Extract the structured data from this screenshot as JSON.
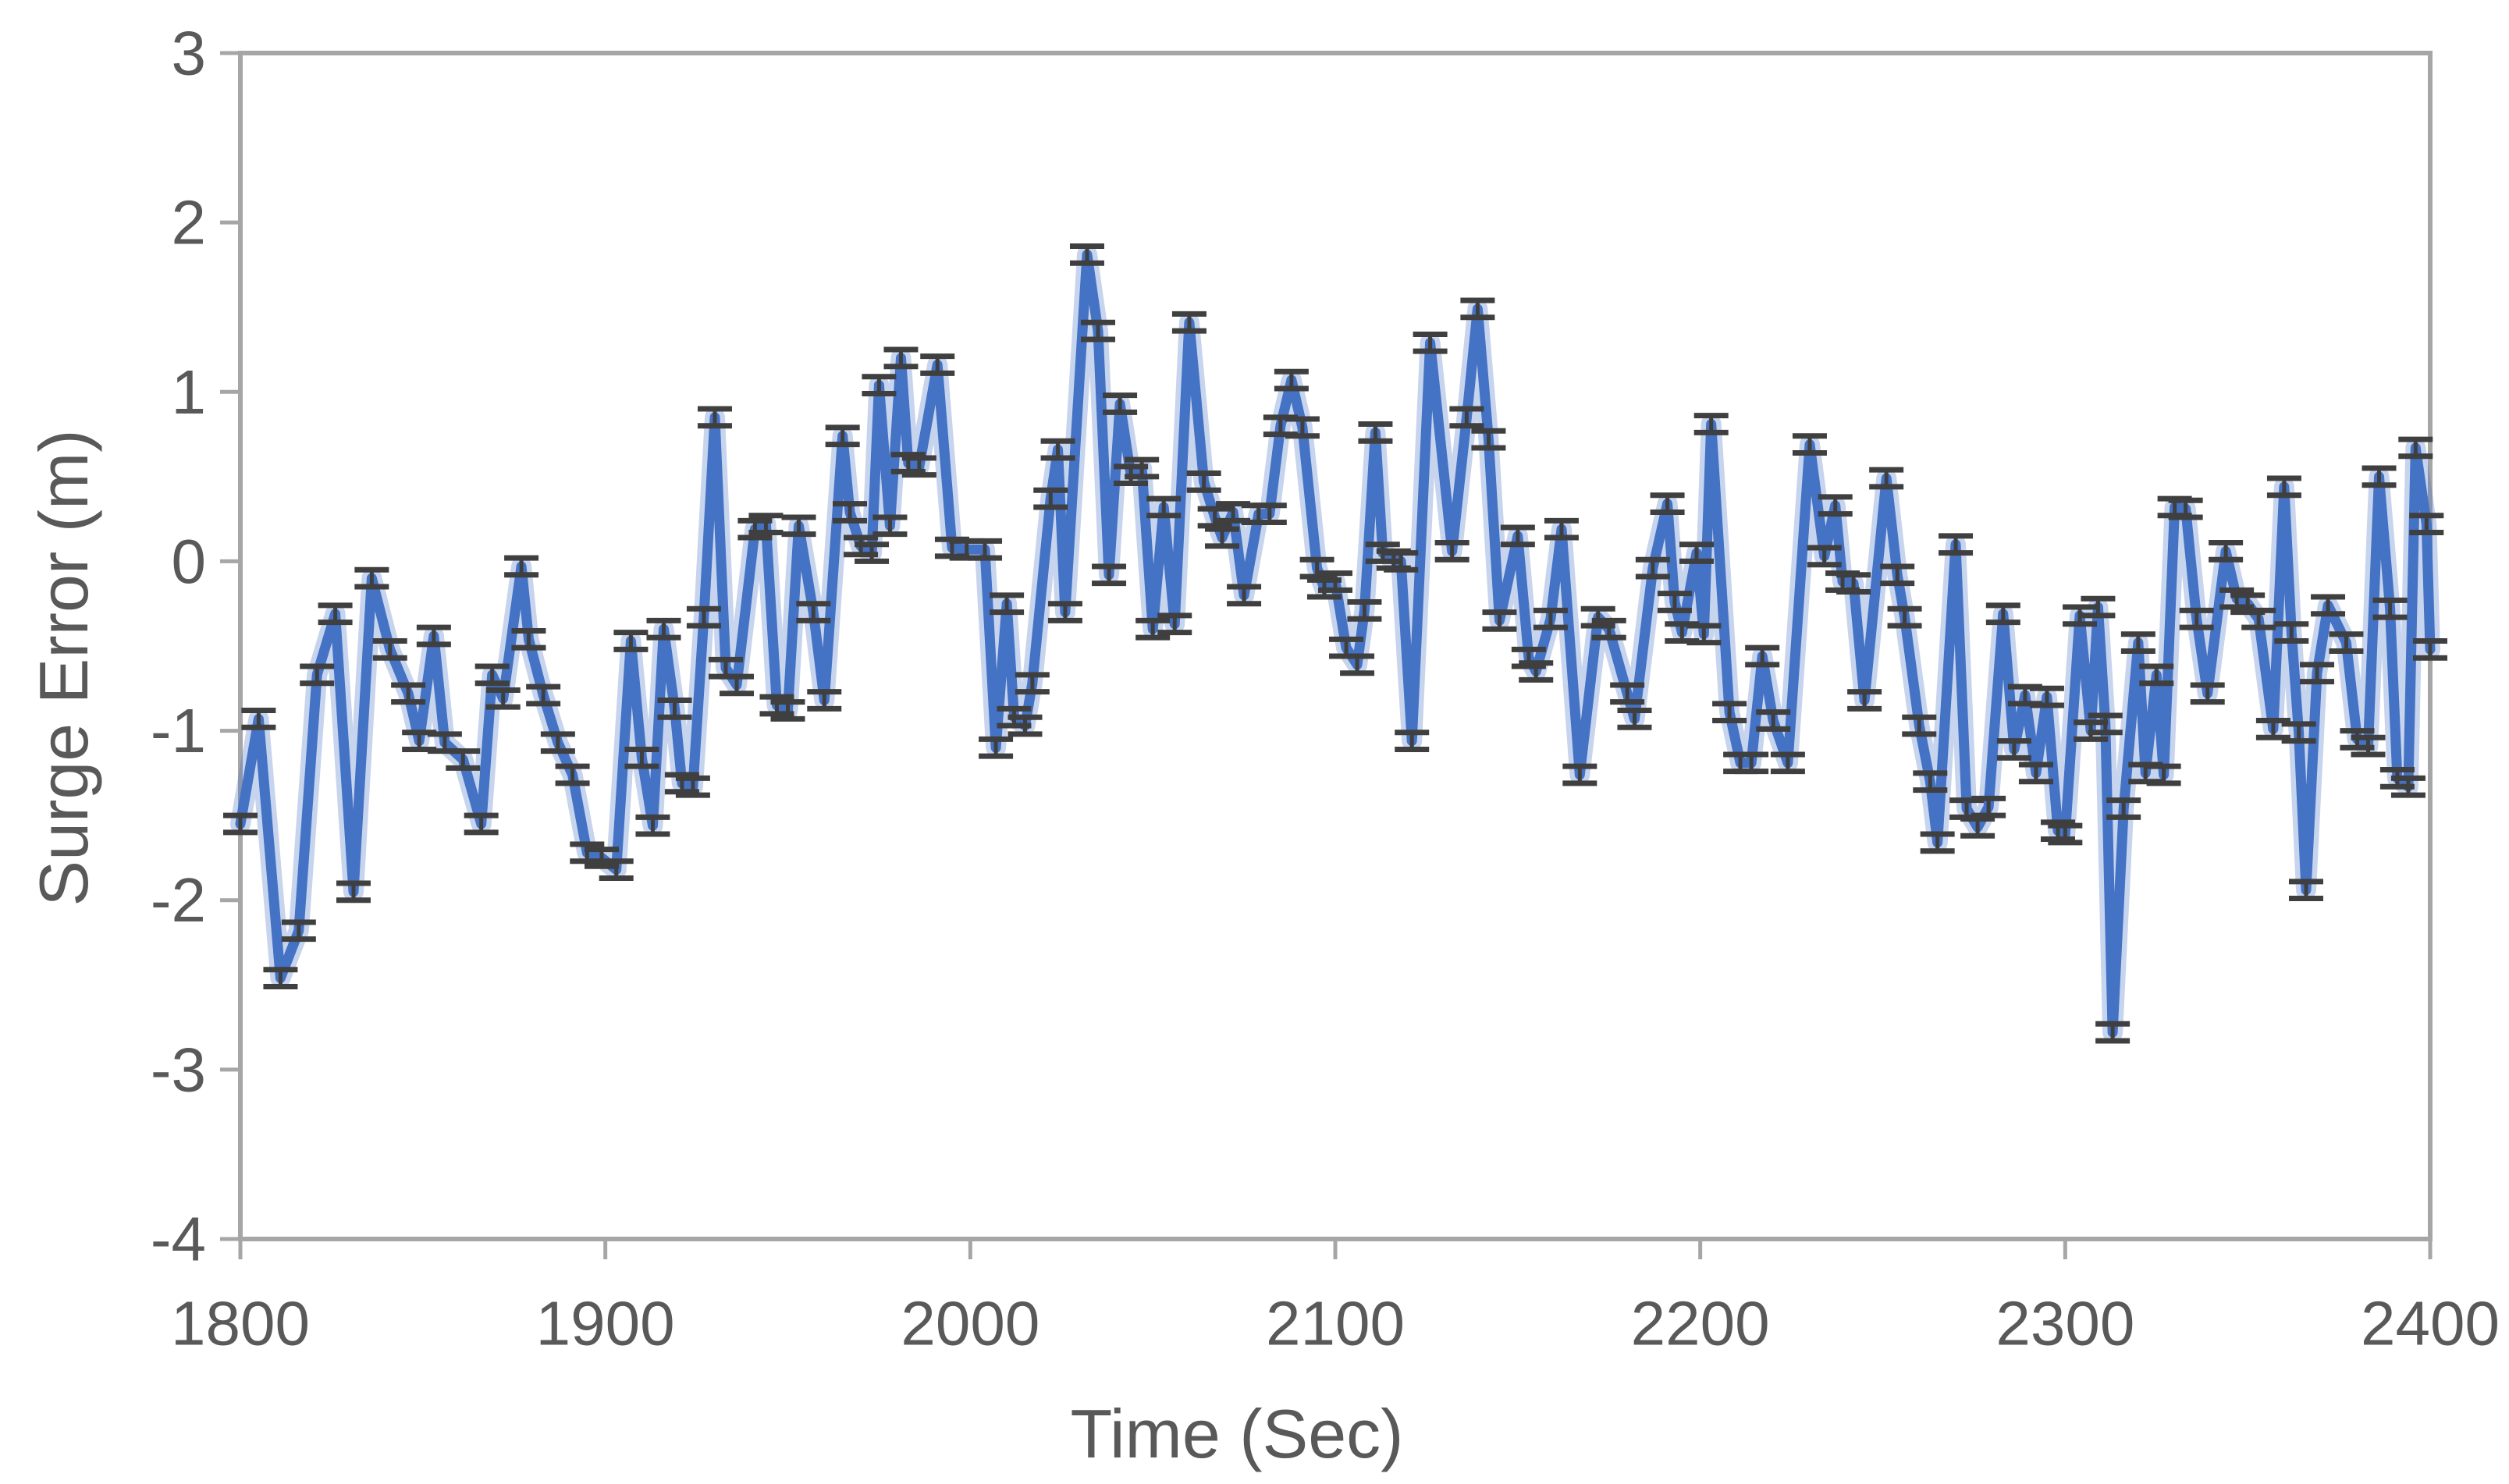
{
  "chart_data": {
    "type": "line",
    "title": "",
    "xlabel": "Time (Sec)",
    "ylabel": "Surge Error (m)",
    "xlim": [
      1800,
      2400
    ],
    "ylim": [
      -4,
      3
    ],
    "x_ticks": [
      1800,
      1900,
      2000,
      2100,
      2200,
      2300,
      2400
    ],
    "y_ticks": [
      3,
      2,
      1,
      0,
      -1,
      -2,
      -3,
      -4
    ],
    "grid": false,
    "legend_position": "none",
    "plot_border": true,
    "series": [
      {
        "name": "Surge Error",
        "line_color": "#4472C4",
        "error_bar_color": "#3f3f3f",
        "error_bar_halfheight_units": 0.05,
        "points": [
          [
            1800,
            -1.55
          ],
          [
            1805,
            -0.93
          ],
          [
            1811,
            -2.46
          ],
          [
            1816,
            -2.18
          ],
          [
            1821,
            -0.67
          ],
          [
            1826,
            -0.31
          ],
          [
            1831,
            -1.95
          ],
          [
            1836,
            -0.1
          ],
          [
            1841,
            -0.52
          ],
          [
            1846,
            -0.78
          ],
          [
            1849,
            -1.06
          ],
          [
            1853,
            -0.44
          ],
          [
            1856,
            -1.07
          ],
          [
            1861,
            -1.17
          ],
          [
            1866,
            -1.55
          ],
          [
            1869,
            -0.67
          ],
          [
            1872,
            -0.81
          ],
          [
            1877,
            -0.03
          ],
          [
            1879,
            -0.46
          ],
          [
            1883,
            -0.79
          ],
          [
            1887,
            -1.07
          ],
          [
            1891,
            -1.26
          ],
          [
            1895,
            -1.72
          ],
          [
            1899,
            -1.75
          ],
          [
            1903,
            -1.82
          ],
          [
            1907,
            -0.47
          ],
          [
            1910,
            -1.16
          ],
          [
            1913,
            -1.56
          ],
          [
            1916,
            -0.4
          ],
          [
            1919,
            -0.87
          ],
          [
            1921,
            -1.31
          ],
          [
            1924,
            -1.33
          ],
          [
            1927,
            -0.33
          ],
          [
            1930,
            0.85
          ],
          [
            1933,
            -0.63
          ],
          [
            1936,
            -0.73
          ],
          [
            1941,
            0.19
          ],
          [
            1944,
            0.22
          ],
          [
            1947,
            -0.85
          ],
          [
            1950,
            -0.88
          ],
          [
            1953,
            0.21
          ],
          [
            1957,
            -0.3
          ],
          [
            1960,
            -0.82
          ],
          [
            1965,
            0.74
          ],
          [
            1967,
            0.29
          ],
          [
            1970,
            0.09
          ],
          [
            1973,
            0.05
          ],
          [
            1975,
            1.04
          ],
          [
            1978,
            0.21
          ],
          [
            1981,
            1.2
          ],
          [
            1983,
            0.58
          ],
          [
            1986,
            0.56
          ],
          [
            1991,
            1.16
          ],
          [
            1995,
            0.08
          ],
          [
            1999,
            0.07
          ],
          [
            2004,
            0.07
          ],
          [
            2007,
            -1.1
          ],
          [
            2010,
            -0.25
          ],
          [
            2012,
            -0.92
          ],
          [
            2015,
            -0.97
          ],
          [
            2017,
            -0.72
          ],
          [
            2022,
            0.37
          ],
          [
            2024,
            0.66
          ],
          [
            2026,
            -0.3
          ],
          [
            2032,
            1.81
          ],
          [
            2035,
            1.36
          ],
          [
            2038,
            -0.08
          ],
          [
            2041,
            0.93
          ],
          [
            2044,
            0.51
          ],
          [
            2047,
            0.55
          ],
          [
            2050,
            -0.4
          ],
          [
            2053,
            0.32
          ],
          [
            2056,
            -0.37
          ],
          [
            2060,
            1.41
          ],
          [
            2064,
            0.47
          ],
          [
            2067,
            0.26
          ],
          [
            2069,
            0.14
          ],
          [
            2072,
            0.29
          ],
          [
            2075,
            -0.2
          ],
          [
            2079,
            0.28
          ],
          [
            2082,
            0.28
          ],
          [
            2085,
            0.8
          ],
          [
            2088,
            1.07
          ],
          [
            2091,
            0.79
          ],
          [
            2095,
            -0.04
          ],
          [
            2097,
            -0.16
          ],
          [
            2100,
            -0.12
          ],
          [
            2103,
            -0.51
          ],
          [
            2106,
            -0.61
          ],
          [
            2108,
            -0.29
          ],
          [
            2111,
            0.76
          ],
          [
            2113,
            0.05
          ],
          [
            2116,
            0.01
          ],
          [
            2118,
            0.0
          ],
          [
            2121,
            -1.06
          ],
          [
            2126,
            1.29
          ],
          [
            2132,
            0.06
          ],
          [
            2136,
            0.85
          ],
          [
            2139,
            1.49
          ],
          [
            2142,
            0.72
          ],
          [
            2145,
            -0.35
          ],
          [
            2150,
            0.15
          ],
          [
            2153,
            -0.57
          ],
          [
            2155,
            -0.65
          ],
          [
            2159,
            -0.34
          ],
          [
            2162,
            0.19
          ],
          [
            2167,
            -1.26
          ],
          [
            2172,
            -0.33
          ],
          [
            2175,
            -0.4
          ],
          [
            2180,
            -0.78
          ],
          [
            2182,
            -0.93
          ],
          [
            2187,
            -0.04
          ],
          [
            2191,
            0.34
          ],
          [
            2193,
            -0.24
          ],
          [
            2195,
            -0.42
          ],
          [
            2199,
            0.05
          ],
          [
            2201,
            -0.43
          ],
          [
            2203,
            0.81
          ],
          [
            2208,
            -0.89
          ],
          [
            2211,
            -1.19
          ],
          [
            2214,
            -1.19
          ],
          [
            2217,
            -0.56
          ],
          [
            2220,
            -0.94
          ],
          [
            2224,
            -1.19
          ],
          [
            2230,
            0.69
          ],
          [
            2234,
            0.03
          ],
          [
            2237,
            0.33
          ],
          [
            2239,
            -0.12
          ],
          [
            2242,
            -0.13
          ],
          [
            2245,
            -0.82
          ],
          [
            2251,
            0.49
          ],
          [
            2254,
            -0.08
          ],
          [
            2256,
            -0.33
          ],
          [
            2260,
            -0.97
          ],
          [
            2263,
            -1.3
          ],
          [
            2265,
            -1.66
          ],
          [
            2270,
            0.1
          ],
          [
            2273,
            -1.46
          ],
          [
            2276,
            -1.57
          ],
          [
            2279,
            -1.45
          ],
          [
            2283,
            -0.31
          ],
          [
            2286,
            -1.11
          ],
          [
            2289,
            -0.79
          ],
          [
            2292,
            -1.25
          ],
          [
            2295,
            -0.8
          ],
          [
            2298,
            -1.59
          ],
          [
            2300,
            -1.61
          ],
          [
            2304,
            -0.32
          ],
          [
            2307,
            -1.0
          ],
          [
            2309,
            -0.27
          ],
          [
            2311,
            -0.96
          ],
          [
            2313,
            -2.78
          ],
          [
            2316,
            -1.46
          ],
          [
            2320,
            -0.48
          ],
          [
            2322,
            -1.25
          ],
          [
            2325,
            -0.67
          ],
          [
            2327,
            -1.26
          ],
          [
            2330,
            0.32
          ],
          [
            2333,
            0.31
          ],
          [
            2336,
            -0.34
          ],
          [
            2339,
            -0.78
          ],
          [
            2344,
            0.06
          ],
          [
            2347,
            -0.22
          ],
          [
            2350,
            -0.25
          ],
          [
            2353,
            -0.34
          ],
          [
            2357,
            -0.99
          ],
          [
            2360,
            0.44
          ],
          [
            2362,
            -0.42
          ],
          [
            2364,
            -1.01
          ],
          [
            2366,
            -1.94
          ],
          [
            2369,
            -0.66
          ],
          [
            2372,
            -0.26
          ],
          [
            2377,
            -0.48
          ],
          [
            2380,
            -1.05
          ],
          [
            2383,
            -1.09
          ],
          [
            2386,
            0.5
          ],
          [
            2389,
            -0.28
          ],
          [
            2391,
            -1.28
          ],
          [
            2394,
            -1.33
          ],
          [
            2396,
            0.67
          ],
          [
            2399,
            0.22
          ],
          [
            2400,
            -0.52
          ]
        ]
      }
    ]
  },
  "style": {
    "axis_line_color": "#a6a6a6",
    "tick_color": "#a6a6a6",
    "tick_label_color": "#595959",
    "axis_title_color": "#595959",
    "background": "#ffffff"
  }
}
